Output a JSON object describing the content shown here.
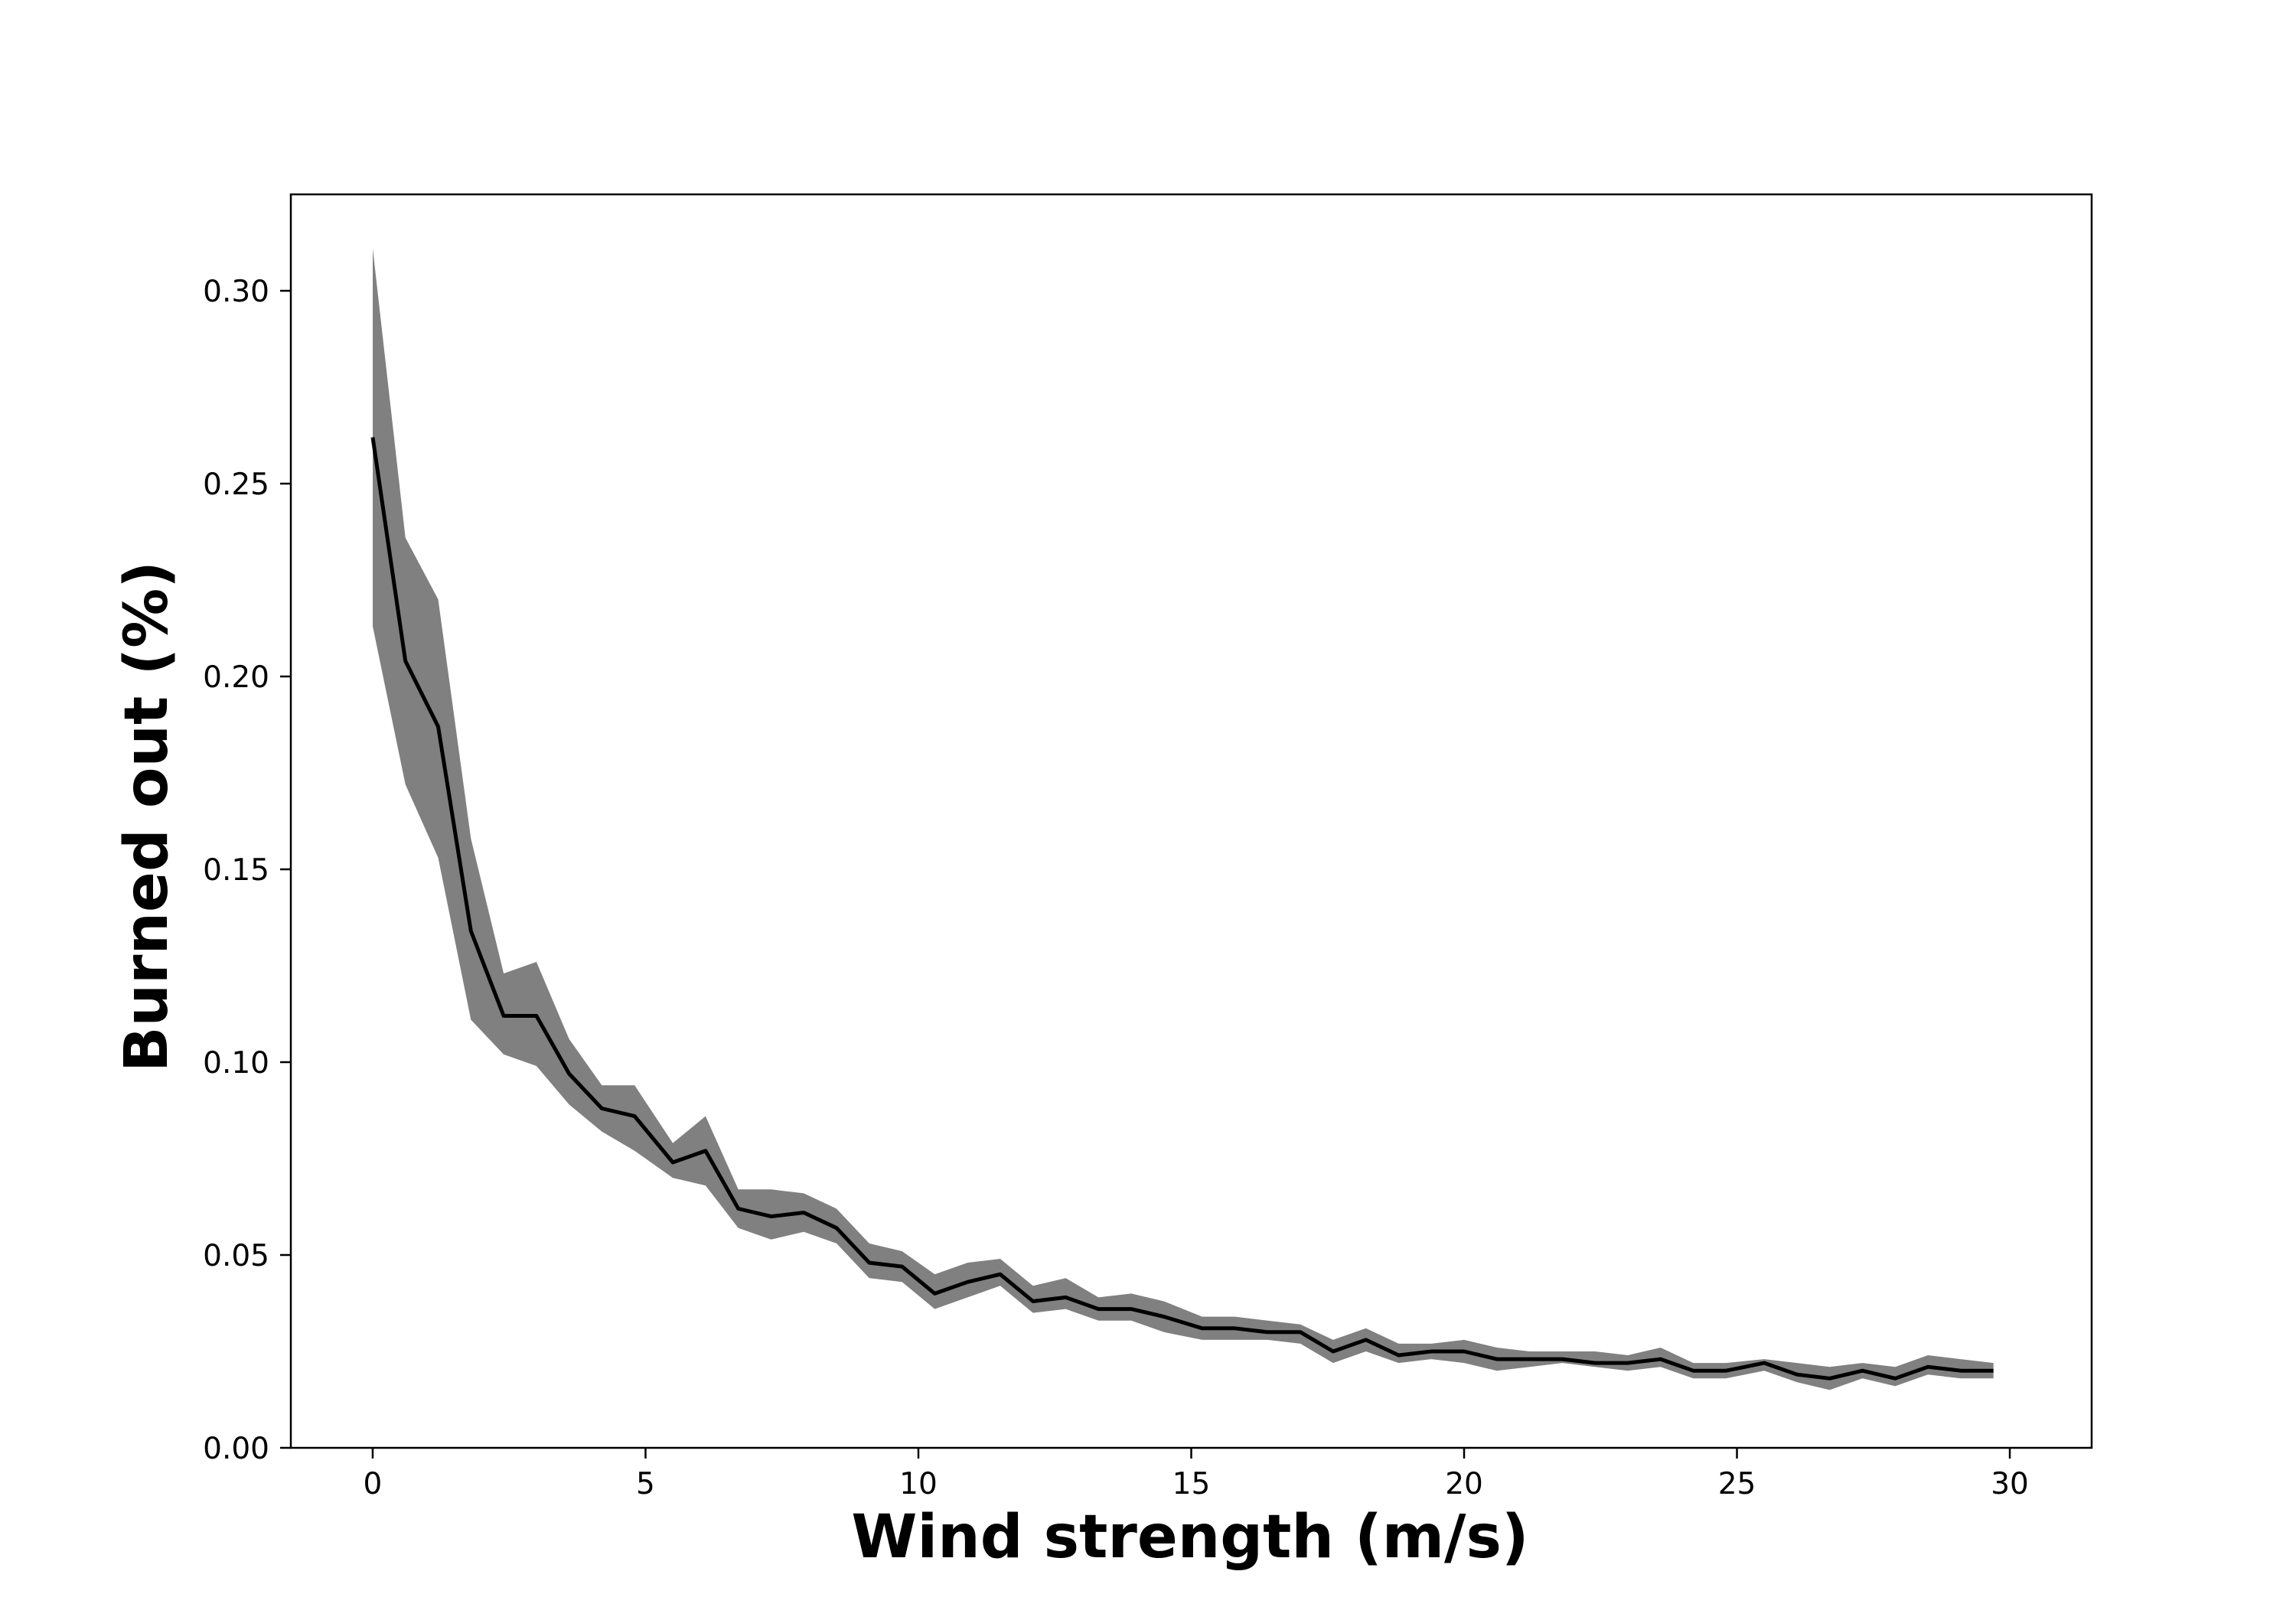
{
  "chart_data": {
    "type": "line",
    "title": "",
    "xlabel": "Wind strength (m/s)",
    "ylabel": "Burned out (%)",
    "xlim": [
      -1.5,
      31.5
    ],
    "ylim": [
      0,
      0.325
    ],
    "xticks": [
      0,
      5,
      10,
      15,
      20,
      25,
      30
    ],
    "xtick_labels": [
      "0",
      "5",
      "10",
      "15",
      "20",
      "25",
      "30"
    ],
    "yticks": [
      0,
      0.05,
      0.1,
      0.15,
      0.2,
      0.25,
      0.3
    ],
    "ytick_labels": [
      "0.00",
      "0.05",
      "0.10",
      "0.15",
      "0.20",
      "0.25",
      "0.30"
    ],
    "grid": false,
    "legend": "none",
    "colors": {
      "line": "#000000",
      "band": "#808080",
      "frame": "#000000"
    },
    "series": [
      {
        "x": [
          0,
          0.6,
          1.2,
          1.8,
          2.4,
          3.0,
          3.6,
          4.2,
          4.8,
          5.5,
          6.1,
          6.7,
          7.3,
          7.9,
          8.5,
          9.1,
          9.7,
          10.3,
          10.9,
          11.5,
          12.1,
          12.7,
          13.3,
          13.9,
          14.5,
          15.2,
          15.8,
          16.4,
          17.0,
          17.6,
          18.2,
          18.8,
          19.4,
          20.0,
          20.6,
          21.2,
          21.8,
          22.4,
          23.0,
          23.6,
          24.2,
          24.8,
          25.5,
          26.1,
          26.7,
          27.3,
          27.9,
          28.5,
          29.1,
          29.7
        ],
        "mean": [
          0.262,
          0.204,
          0.187,
          0.134,
          0.112,
          0.112,
          0.097,
          0.088,
          0.086,
          0.074,
          0.077,
          0.062,
          0.06,
          0.061,
          0.057,
          0.048,
          0.047,
          0.04,
          0.043,
          0.045,
          0.038,
          0.039,
          0.036,
          0.036,
          0.034,
          0.031,
          0.031,
          0.03,
          0.03,
          0.025,
          0.028,
          0.024,
          0.025,
          0.025,
          0.023,
          0.023,
          0.023,
          0.022,
          0.022,
          0.023,
          0.02,
          0.02,
          0.022,
          0.019,
          0.018,
          0.02,
          0.018,
          0.021,
          0.02,
          0.02
        ],
        "upper": [
          0.311,
          0.236,
          0.22,
          0.158,
          0.123,
          0.126,
          0.106,
          0.094,
          0.094,
          0.079,
          0.086,
          0.067,
          0.067,
          0.066,
          0.062,
          0.053,
          0.051,
          0.045,
          0.048,
          0.049,
          0.042,
          0.044,
          0.039,
          0.04,
          0.038,
          0.034,
          0.034,
          0.033,
          0.032,
          0.028,
          0.031,
          0.027,
          0.027,
          0.028,
          0.026,
          0.025,
          0.025,
          0.025,
          0.024,
          0.026,
          0.022,
          0.022,
          0.023,
          0.022,
          0.021,
          0.022,
          0.021,
          0.024,
          0.023,
          0.022
        ],
        "lower": [
          0.213,
          0.172,
          0.153,
          0.111,
          0.102,
          0.099,
          0.089,
          0.082,
          0.077,
          0.07,
          0.068,
          0.057,
          0.054,
          0.056,
          0.053,
          0.044,
          0.043,
          0.036,
          0.039,
          0.042,
          0.035,
          0.036,
          0.033,
          0.033,
          0.03,
          0.028,
          0.028,
          0.028,
          0.027,
          0.022,
          0.025,
          0.022,
          0.023,
          0.022,
          0.02,
          0.021,
          0.022,
          0.021,
          0.02,
          0.021,
          0.018,
          0.018,
          0.02,
          0.017,
          0.015,
          0.018,
          0.016,
          0.019,
          0.018,
          0.018
        ]
      }
    ]
  }
}
